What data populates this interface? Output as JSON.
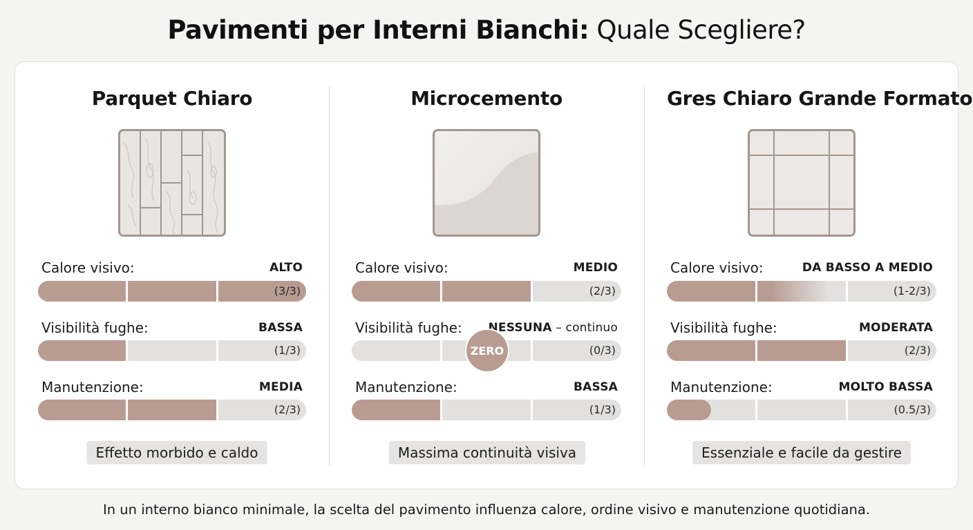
{
  "title": {
    "bold": "Pavimenti per Interni Bianchi:",
    "light": "Quale Scegliere?"
  },
  "footer": "In un interno bianco minimale, la scelta del pavimento influenza calore, ordine visivo e manutenzione quotidiana.",
  "colors": {
    "fill": "#b89c92",
    "empty": "#e2e1df",
    "card": "#ffffff",
    "tag": "#e5e4e2"
  },
  "columns": [
    {
      "name": "Parquet Chiaro",
      "swatch_icon": "parquet-wood-planks-icon",
      "metrics": [
        {
          "label": "Calore visivo:",
          "value": "ALTO",
          "extra": "",
          "fraction": "(3/3)",
          "level": 3
        },
        {
          "label": "Visibilità fughe:",
          "value": "BASSA",
          "extra": "",
          "fraction": "(1/3)",
          "level": 1
        },
        {
          "label": "Manutenzione:",
          "value": "MEDIA",
          "extra": "",
          "fraction": "(2/3)",
          "level": 2
        }
      ],
      "tag": "Effetto morbido e caldo"
    },
    {
      "name": "Microcemento",
      "swatch_icon": "microcement-surface-icon",
      "metrics": [
        {
          "label": "Calore visivo:",
          "value": "MEDIO",
          "extra": "",
          "fraction": "(2/3)",
          "level": 2
        },
        {
          "label": "Visibilità fughe:",
          "value": "NESSUNA",
          "extra": " – continuo",
          "fraction": "(0/3)",
          "level": 0,
          "badge": "ZERO"
        },
        {
          "label": "Manutenzione:",
          "value": "BASSA",
          "extra": "",
          "fraction": "(1/3)",
          "level": 1
        }
      ],
      "tag": "Massima continuità visiva"
    },
    {
      "name": "Gres Chiaro Grande Formato",
      "swatch_icon": "large-format-tiles-icon",
      "metrics": [
        {
          "label": "Calore visivo:",
          "value": "DA BASSO A MEDIO",
          "extra": "",
          "fraction": "(1-2/3)",
          "level": 1,
          "gradient_to": 2
        },
        {
          "label": "Visibilità fughe:",
          "value": "MODERATA",
          "extra": "",
          "fraction": "(2/3)",
          "level": 2
        },
        {
          "label": "Manutenzione:",
          "value": "MOLTO BASSA",
          "extra": "",
          "fraction": "(0.5/3)",
          "level": 0.5
        }
      ],
      "tag": "Essenziale e facile da gestire"
    }
  ]
}
